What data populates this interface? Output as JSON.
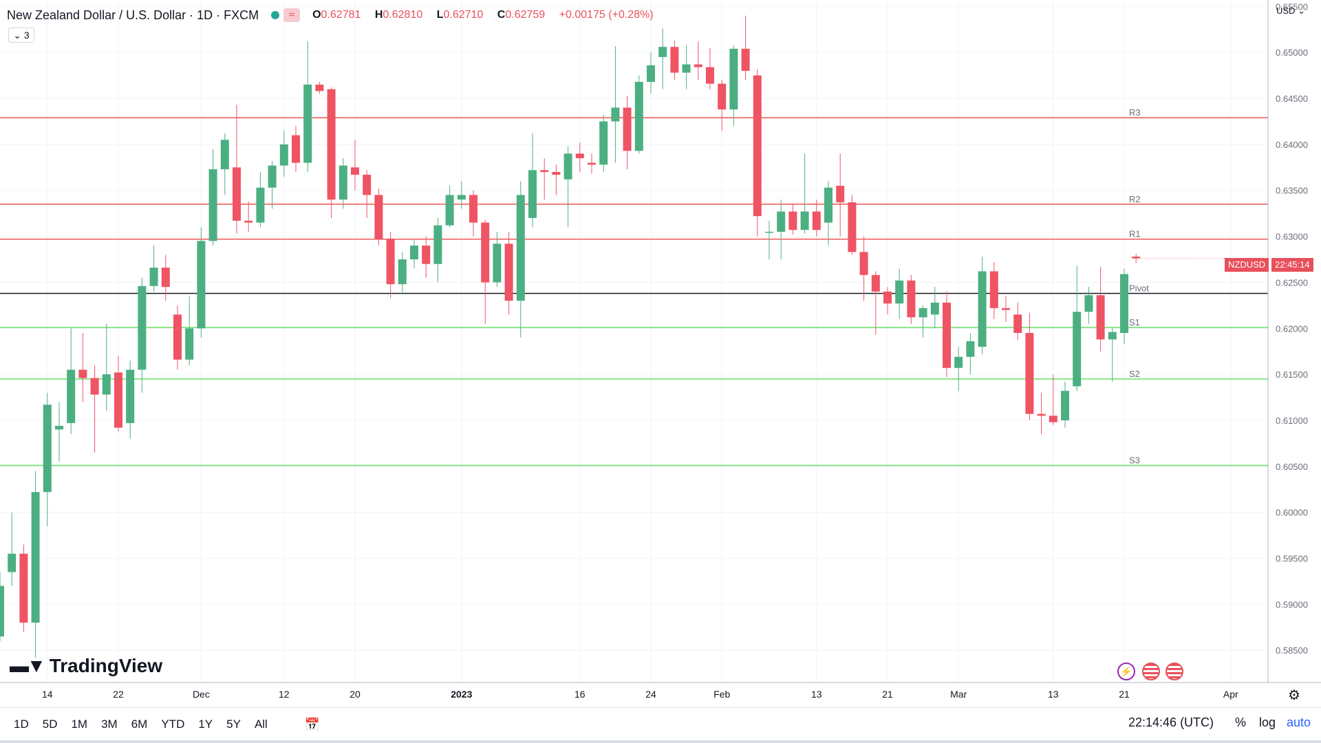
{
  "header": {
    "title": "New Zealand Dollar / U.S. Dollar · 1D · FXCM",
    "ohlc": {
      "o_label": "O",
      "o": "0.62781",
      "h_label": "H",
      "h": "0.62810",
      "l_label": "L",
      "l": "0.62710",
      "c_label": "C",
      "c": "0.62759",
      "change": "+0.00175 (+0.28%)"
    },
    "indicators_count": "3",
    "wave_icon": "≈"
  },
  "price_axis": {
    "currency": "USD",
    "symbol_badge": "NZDUSD",
    "countdown_badge": "22:45:14"
  },
  "logo": "TradingView",
  "bottom_bar": {
    "ranges": [
      "1D",
      "5D",
      "1M",
      "3M",
      "6M",
      "YTD",
      "1Y",
      "5Y",
      "All"
    ],
    "clock": "22:14:46 (UTC)",
    "percent": "%",
    "log": "log",
    "auto": "auto"
  },
  "colors": {
    "up": "#4caf82",
    "down": "#ef5464",
    "resistance": "#ef5350",
    "support": "#66e066",
    "pivot": "#131722",
    "grid": "#f0f3fa"
  },
  "chart_data": {
    "type": "candlestick",
    "ylim": [
      0.5815,
      0.6557
    ],
    "yticks": [
      0.585,
      0.59,
      0.595,
      0.6,
      0.605,
      0.61,
      0.615,
      0.62,
      0.625,
      0.63,
      0.635,
      0.64,
      0.645,
      0.65,
      0.655
    ],
    "ytick_labels": [
      "0.58500",
      "0.59000",
      "0.59500",
      "0.60000",
      "0.60500",
      "0.61000",
      "0.61500",
      "0.62000",
      "0.62500",
      "0.63000",
      "0.63500",
      "0.64000",
      "0.64500",
      "0.65000",
      "0.65500"
    ],
    "xticks": [
      {
        "label": "14",
        "index": 4
      },
      {
        "label": "22",
        "index": 10
      },
      {
        "label": "Dec",
        "index": 17
      },
      {
        "label": "12",
        "index": 24
      },
      {
        "label": "20",
        "index": 30
      },
      {
        "label": "2023",
        "index": 39
      },
      {
        "label": "16",
        "index": 49
      },
      {
        "label": "24",
        "index": 55
      },
      {
        "label": "Feb",
        "index": 61
      },
      {
        "label": "13",
        "index": 69
      },
      {
        "label": "21",
        "index": 75
      },
      {
        "label": "Mar",
        "index": 81
      },
      {
        "label": "13",
        "index": 89
      },
      {
        "label": "21",
        "index": 95
      },
      {
        "label": "Apr",
        "index": 104
      }
    ],
    "levels": [
      {
        "name": "R3",
        "value": 0.6429,
        "kind": "resistance"
      },
      {
        "name": "R2",
        "value": 0.6335,
        "kind": "resistance"
      },
      {
        "name": "R1",
        "value": 0.6297,
        "kind": "resistance"
      },
      {
        "name": "Pivot",
        "value": 0.6238,
        "kind": "pivot"
      },
      {
        "name": "S1",
        "value": 0.6201,
        "kind": "support"
      },
      {
        "name": "S2",
        "value": 0.6145,
        "kind": "support"
      },
      {
        "name": "S3",
        "value": 0.6051,
        "kind": "support"
      }
    ],
    "candles": [
      [
        0.5865,
        0.592,
        0.586,
        0.5935
      ],
      [
        0.5935,
        0.5955,
        0.592,
        0.6
      ],
      [
        0.5955,
        0.588,
        0.587,
        0.5965
      ],
      [
        0.588,
        0.6022,
        0.5842,
        0.6045
      ],
      [
        0.6022,
        0.6117,
        0.5985,
        0.613
      ],
      [
        0.609,
        0.6094,
        0.6055,
        0.612
      ],
      [
        0.6097,
        0.6155,
        0.6085,
        0.62
      ],
      [
        0.6155,
        0.6146,
        0.612,
        0.6195
      ],
      [
        0.6146,
        0.6128,
        0.6065,
        0.616
      ],
      [
        0.6128,
        0.615,
        0.611,
        0.6205
      ],
      [
        0.6152,
        0.6092,
        0.6088,
        0.617
      ],
      [
        0.6097,
        0.6155,
        0.608,
        0.6165
      ],
      [
        0.6155,
        0.6246,
        0.613,
        0.6255
      ],
      [
        0.6246,
        0.6266,
        0.624,
        0.629
      ],
      [
        0.6266,
        0.6245,
        0.623,
        0.628
      ],
      [
        0.6215,
        0.6166,
        0.6155,
        0.6225
      ],
      [
        0.6166,
        0.62,
        0.616,
        0.6235
      ],
      [
        0.62,
        0.6295,
        0.619,
        0.631
      ],
      [
        0.6295,
        0.6373,
        0.629,
        0.6395
      ],
      [
        0.6373,
        0.6405,
        0.6345,
        0.6412
      ],
      [
        0.6375,
        0.6317,
        0.6303,
        0.6443
      ],
      [
        0.6317,
        0.6315,
        0.6305,
        0.6338
      ],
      [
        0.6315,
        0.6353,
        0.631,
        0.637
      ],
      [
        0.6353,
        0.6377,
        0.633,
        0.6382
      ],
      [
        0.6377,
        0.64,
        0.6365,
        0.6415
      ],
      [
        0.641,
        0.638,
        0.637,
        0.642
      ],
      [
        0.638,
        0.6465,
        0.637,
        0.6512
      ],
      [
        0.6465,
        0.6458,
        0.6455,
        0.6468
      ],
      [
        0.646,
        0.634,
        0.632,
        0.6462
      ],
      [
        0.634,
        0.6377,
        0.633,
        0.6385
      ],
      [
        0.6375,
        0.6367,
        0.635,
        0.6405
      ],
      [
        0.6367,
        0.6345,
        0.632,
        0.6372
      ],
      [
        0.6345,
        0.6297,
        0.629,
        0.6352
      ],
      [
        0.6297,
        0.6248,
        0.6233,
        0.6305
      ],
      [
        0.6248,
        0.6275,
        0.6238,
        0.6283
      ],
      [
        0.6275,
        0.629,
        0.6265,
        0.6296
      ],
      [
        0.629,
        0.627,
        0.6255,
        0.63
      ],
      [
        0.627,
        0.6312,
        0.625,
        0.632
      ],
      [
        0.6312,
        0.6345,
        0.631,
        0.6355
      ],
      [
        0.634,
        0.6345,
        0.633,
        0.636
      ],
      [
        0.6345,
        0.6315,
        0.63,
        0.635
      ],
      [
        0.6315,
        0.625,
        0.6205,
        0.6318
      ],
      [
        0.625,
        0.6292,
        0.6245,
        0.6305
      ],
      [
        0.6292,
        0.623,
        0.6215,
        0.6305
      ],
      [
        0.623,
        0.6345,
        0.619,
        0.636
      ],
      [
        0.632,
        0.6372,
        0.631,
        0.6412
      ],
      [
        0.6372,
        0.637,
        0.634,
        0.6385
      ],
      [
        0.637,
        0.6367,
        0.6345,
        0.6378
      ],
      [
        0.6362,
        0.639,
        0.631,
        0.6398
      ],
      [
        0.639,
        0.6385,
        0.637,
        0.6402
      ],
      [
        0.638,
        0.6378,
        0.6368,
        0.639
      ],
      [
        0.6378,
        0.6425,
        0.637,
        0.6432
      ],
      [
        0.6425,
        0.644,
        0.638,
        0.6507
      ],
      [
        0.644,
        0.6393,
        0.6373,
        0.6453
      ],
      [
        0.6393,
        0.6468,
        0.639,
        0.6475
      ],
      [
        0.6468,
        0.6486,
        0.6455,
        0.65
      ],
      [
        0.6495,
        0.6506,
        0.646,
        0.6526
      ],
      [
        0.6506,
        0.6478,
        0.647,
        0.6513
      ],
      [
        0.6478,
        0.6487,
        0.646,
        0.6508
      ],
      [
        0.6487,
        0.6484,
        0.647,
        0.6512
      ],
      [
        0.6484,
        0.6466,
        0.646,
        0.6505
      ],
      [
        0.6466,
        0.6438,
        0.6415,
        0.647
      ],
      [
        0.6438,
        0.6504,
        0.642,
        0.6508
      ],
      [
        0.6504,
        0.648,
        0.647,
        0.654
      ],
      [
        0.6475,
        0.6322,
        0.63,
        0.6482
      ],
      [
        0.6305,
        0.6305,
        0.6275,
        0.6317
      ],
      [
        0.6305,
        0.6327,
        0.6275,
        0.634
      ],
      [
        0.6327,
        0.6307,
        0.6302,
        0.6335
      ],
      [
        0.6307,
        0.6327,
        0.6303,
        0.639
      ],
      [
        0.6327,
        0.6307,
        0.63,
        0.634
      ],
      [
        0.6315,
        0.6353,
        0.629,
        0.636
      ],
      [
        0.6355,
        0.6337,
        0.63,
        0.639
      ],
      [
        0.6337,
        0.6283,
        0.628,
        0.6345
      ],
      [
        0.6283,
        0.6258,
        0.623,
        0.63
      ],
      [
        0.6258,
        0.624,
        0.6193,
        0.6262
      ],
      [
        0.624,
        0.6227,
        0.6215,
        0.6245
      ],
      [
        0.6227,
        0.6252,
        0.621,
        0.6265
      ],
      [
        0.6252,
        0.6212,
        0.6205,
        0.6258
      ],
      [
        0.6212,
        0.6222,
        0.619,
        0.6225
      ],
      [
        0.6215,
        0.6228,
        0.62,
        0.6245
      ],
      [
        0.6228,
        0.6157,
        0.6147,
        0.624
      ],
      [
        0.6157,
        0.6169,
        0.6132,
        0.618
      ],
      [
        0.6169,
        0.6186,
        0.615,
        0.6195
      ],
      [
        0.618,
        0.6262,
        0.6172,
        0.6278
      ],
      [
        0.6262,
        0.6222,
        0.621,
        0.6272
      ],
      [
        0.6222,
        0.622,
        0.6207,
        0.6235
      ],
      [
        0.6215,
        0.6195,
        0.6187,
        0.6228
      ],
      [
        0.6195,
        0.6107,
        0.61,
        0.6217
      ],
      [
        0.6107,
        0.6105,
        0.6085,
        0.613
      ],
      [
        0.6105,
        0.6098,
        0.6095,
        0.615
      ],
      [
        0.61,
        0.6132,
        0.6092,
        0.6142
      ],
      [
        0.6137,
        0.6218,
        0.6132,
        0.6268
      ],
      [
        0.6218,
        0.6236,
        0.6205,
        0.6245
      ],
      [
        0.6236,
        0.6188,
        0.6175,
        0.6267
      ],
      [
        0.6188,
        0.6196,
        0.6142,
        0.62
      ],
      [
        0.6195,
        0.6259,
        0.6183,
        0.6265
      ],
      [
        0.6278,
        0.6276,
        0.6271,
        0.6281
      ]
    ]
  }
}
